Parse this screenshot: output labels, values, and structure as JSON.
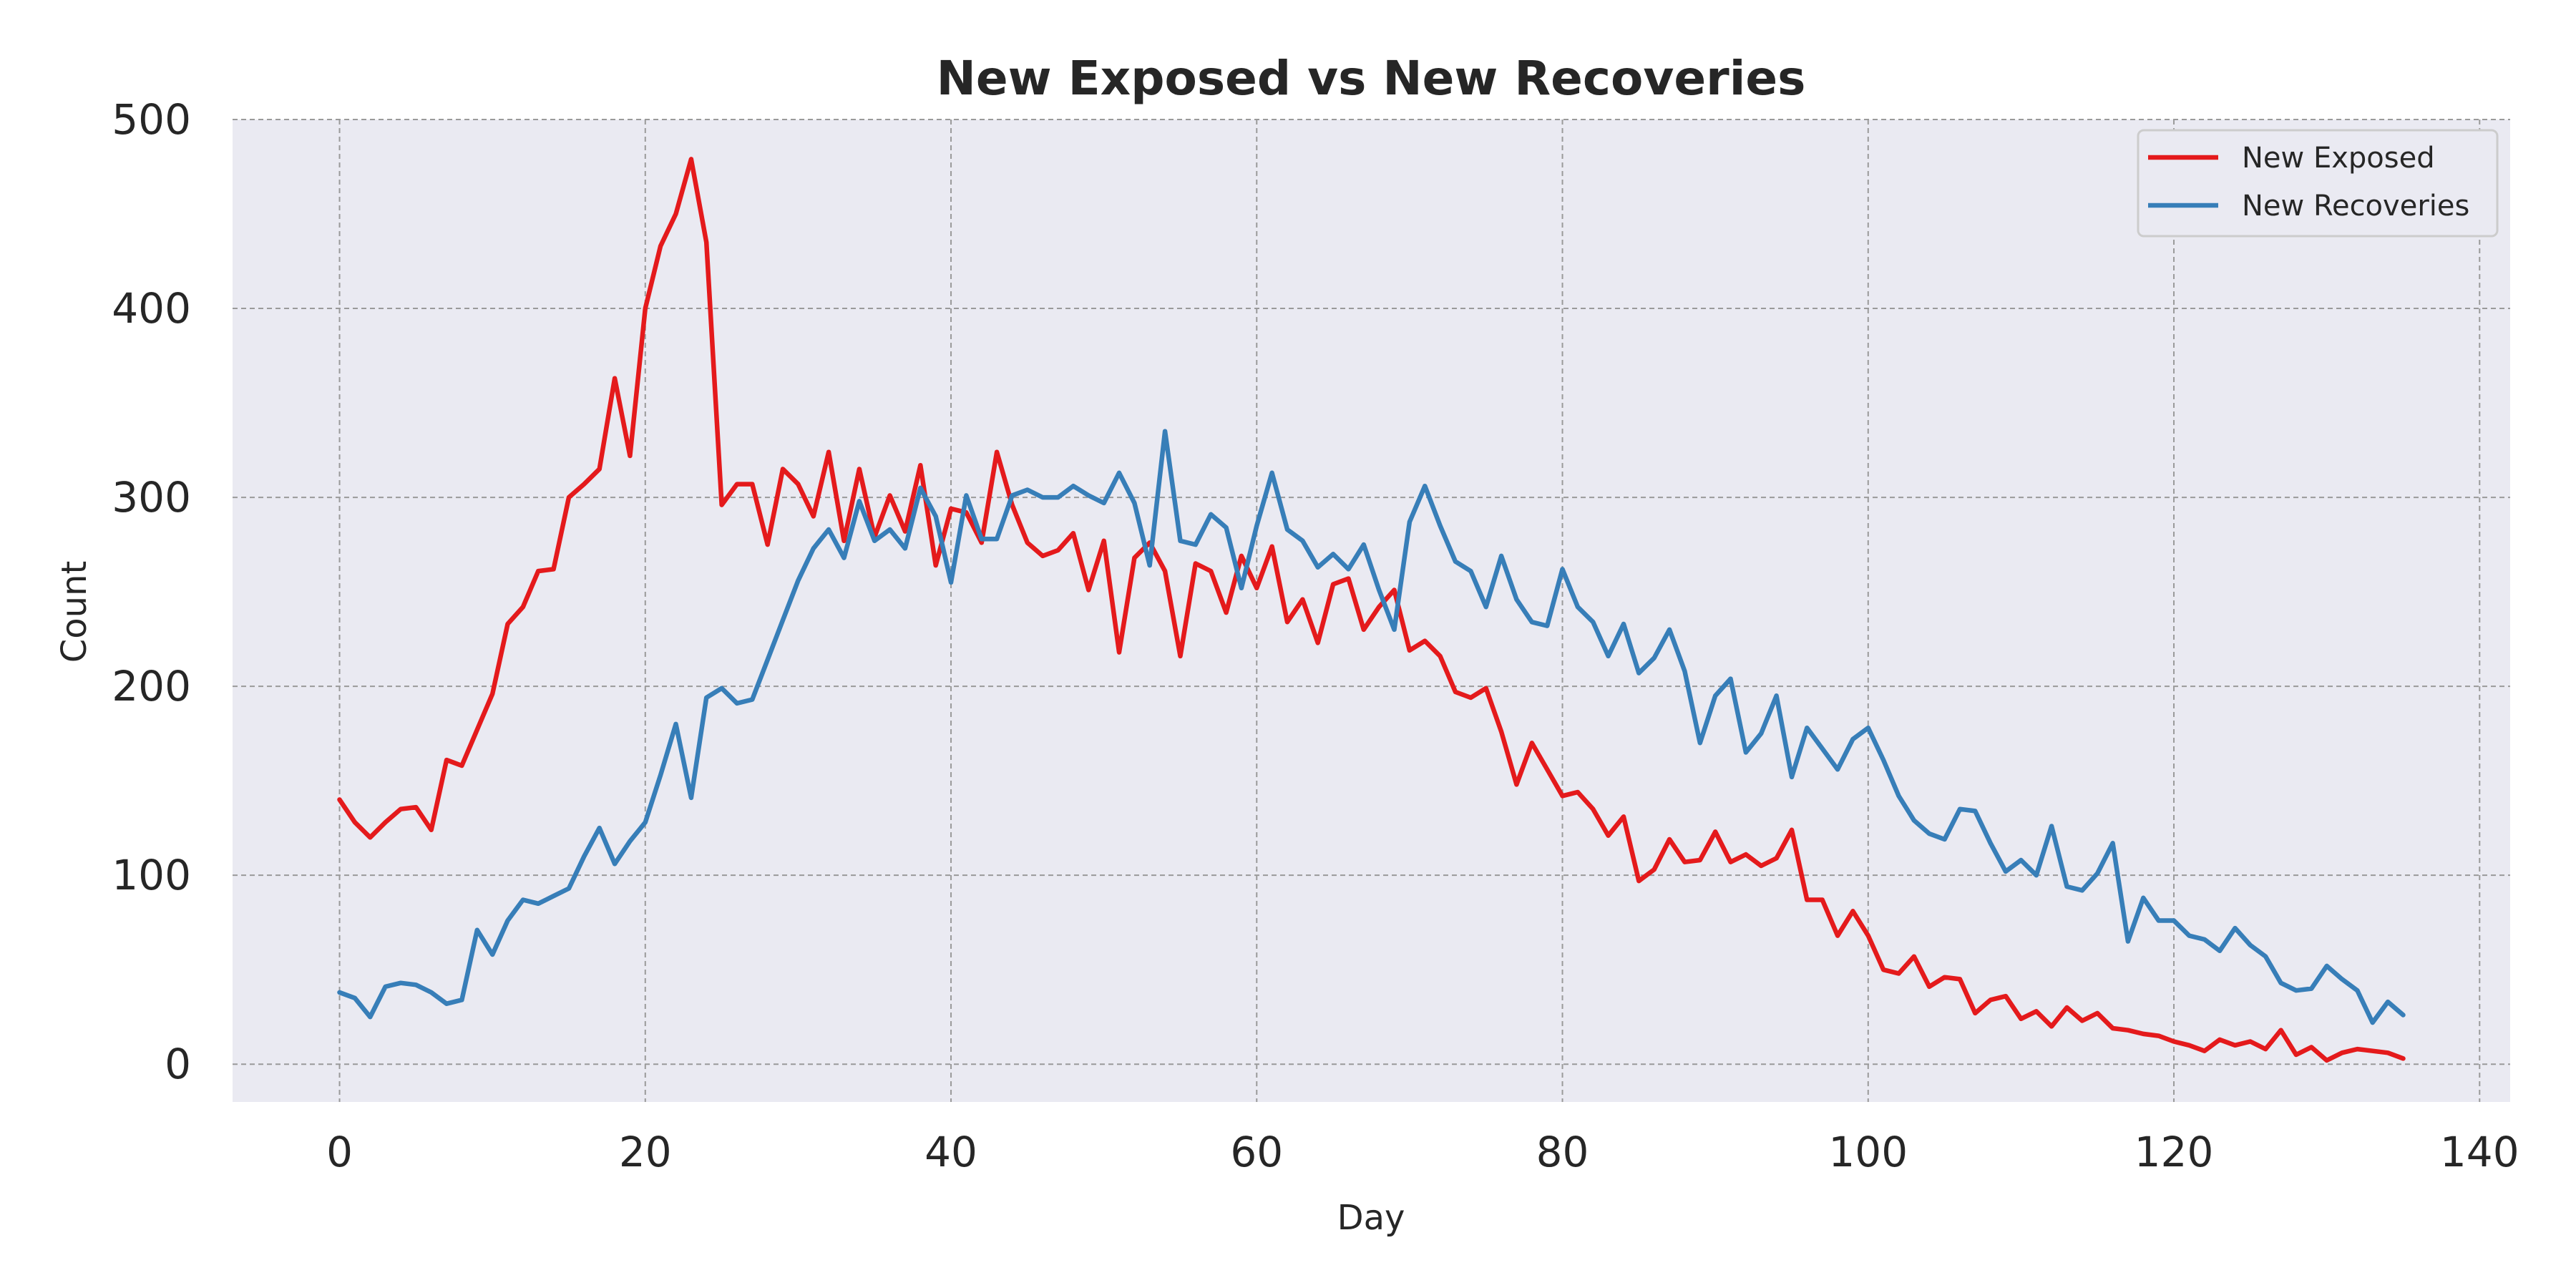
{
  "chart_data": {
    "type": "line",
    "title": "New Exposed vs New Recoveries",
    "xlabel": "Day",
    "ylabel": "Count",
    "xlim": [
      -7,
      142
    ],
    "ylim": [
      -20,
      500
    ],
    "xticks": [
      0,
      20,
      40,
      60,
      80,
      100,
      120,
      140
    ],
    "yticks": [
      0,
      100,
      200,
      300,
      400,
      500
    ],
    "grid": true,
    "legend_position": "top-right",
    "background_color": "#eaeaf2",
    "series": [
      {
        "name": "New Exposed",
        "color": "#e41a1c",
        "x_start": 0,
        "x_step": 1,
        "values": [
          140,
          128,
          120,
          128,
          135,
          136,
          124,
          161,
          158,
          177,
          196,
          233,
          242,
          261,
          262,
          300,
          307,
          315,
          363,
          322,
          400,
          433,
          450,
          479,
          435,
          296,
          307,
          307,
          275,
          315,
          307,
          290,
          324,
          277,
          315,
          279,
          301,
          282,
          317,
          264,
          294,
          292,
          276,
          324,
          296,
          276,
          269,
          272,
          281,
          251,
          277,
          218,
          268,
          276,
          261,
          216,
          265,
          261,
          239,
          269,
          252,
          274,
          234,
          246,
          223,
          254,
          257,
          230,
          242,
          251,
          219,
          224,
          216,
          197,
          194,
          199,
          176,
          148,
          170,
          156,
          142,
          144,
          135,
          121,
          131,
          97,
          103,
          119,
          107,
          108,
          123,
          107,
          111,
          105,
          109,
          124,
          87,
          87,
          68,
          81,
          68,
          50,
          48,
          57,
          41,
          46,
          45,
          27,
          34,
          36,
          24,
          28,
          20,
          30,
          23,
          27,
          19,
          18,
          16,
          15,
          12,
          10,
          7,
          13,
          10,
          12,
          8,
          18,
          5,
          9,
          2,
          6,
          8,
          7,
          6,
          3
        ]
      },
      {
        "name": "New Recoveries",
        "color": "#377eb8",
        "x_start": 0,
        "x_step": 1,
        "values": [
          38,
          35,
          25,
          41,
          43,
          42,
          38,
          32,
          34,
          71,
          58,
          76,
          87,
          85,
          89,
          93,
          110,
          125,
          106,
          118,
          128,
          153,
          180,
          141,
          194,
          199,
          191,
          193,
          214,
          235,
          256,
          273,
          283,
          268,
          298,
          277,
          283,
          273,
          305,
          290,
          255,
          301,
          278,
          278,
          301,
          304,
          300,
          300,
          306,
          301,
          297,
          313,
          297,
          264,
          335,
          277,
          275,
          291,
          284,
          252,
          285,
          313,
          283,
          277,
          263,
          270,
          262,
          275,
          251,
          230,
          287,
          306,
          285,
          266,
          261,
          242,
          269,
          246,
          234,
          232,
          262,
          242,
          234,
          216,
          233,
          207,
          215,
          230,
          208,
          170,
          195,
          204,
          165,
          175,
          195,
          152,
          178,
          167,
          156,
          172,
          178,
          161,
          142,
          129,
          122,
          119,
          135,
          134,
          117,
          102,
          108,
          100,
          126,
          94,
          92,
          101,
          117,
          65,
          88,
          76,
          76,
          68,
          66,
          60,
          72,
          63,
          57,
          43,
          39,
          40,
          52,
          45,
          39,
          22,
          33,
          26
        ]
      }
    ]
  }
}
